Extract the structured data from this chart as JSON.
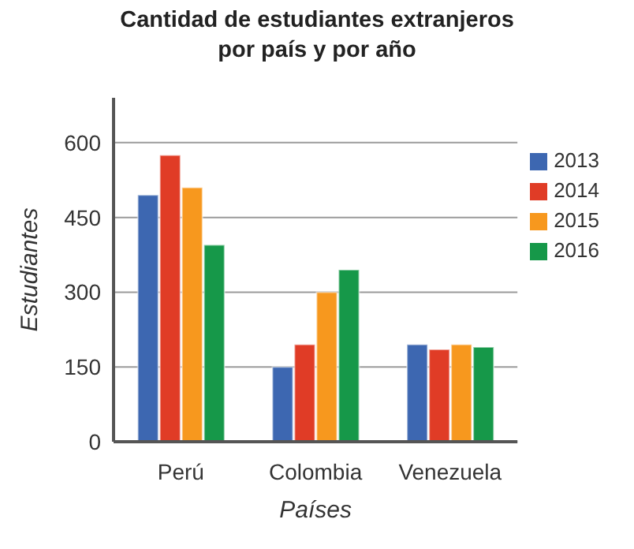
{
  "chart_data": {
    "type": "bar",
    "title": "Cantidad de estudiantes extranjeros por país y por año",
    "xlabel": "Países",
    "ylabel": "Estudiantes",
    "categories": [
      "Perú",
      "Colombia",
      "Venezuela"
    ],
    "series": [
      {
        "name": "2013",
        "color": "#3d67b1",
        "values": [
          495,
          150,
          195
        ]
      },
      {
        "name": "2014",
        "color": "#e03c26",
        "values": [
          575,
          195,
          185
        ]
      },
      {
        "name": "2015",
        "color": "#f7981e",
        "values": [
          510,
          300,
          195
        ]
      },
      {
        "name": "2016",
        "color": "#169849",
        "values": [
          395,
          345,
          190
        ]
      }
    ],
    "ylim": [
      0,
      690
    ],
    "yticks": [
      0,
      150,
      300,
      450,
      600
    ],
    "grid": "y",
    "legend": "top right"
  }
}
